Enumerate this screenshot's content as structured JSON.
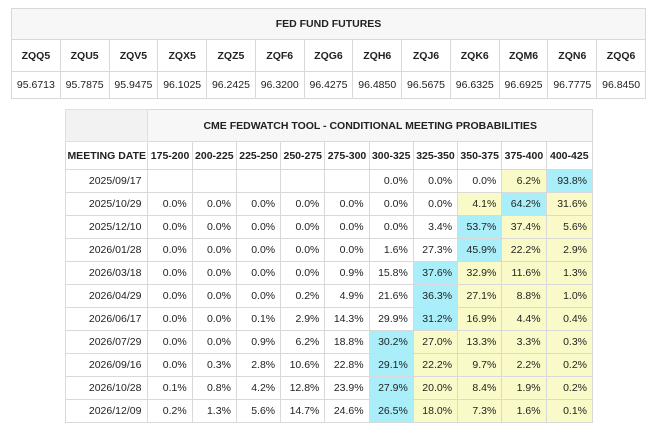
{
  "futures": {
    "title": "FED FUND FUTURES",
    "columns": [
      "ZQQ5",
      "ZQU5",
      "ZQV5",
      "ZQX5",
      "ZQZ5",
      "ZQF6",
      "ZQG6",
      "ZQH6",
      "ZQJ6",
      "ZQK6",
      "ZQM6",
      "ZQN6",
      "ZQQ6"
    ],
    "values": [
      "95.6713",
      "95.7875",
      "95.9475",
      "96.1025",
      "96.2425",
      "96.3200",
      "96.4275",
      "96.4850",
      "96.5675",
      "96.6325",
      "96.6925",
      "96.7775",
      "96.8450"
    ]
  },
  "fedwatch": {
    "title": "CME FEDWATCH TOOL - CONDITIONAL MEETING PROBABILITIES",
    "date_header": "MEETING DATE",
    "ranges": [
      "175-200",
      "200-225",
      "225-250",
      "250-275",
      "275-300",
      "300-325",
      "325-350",
      "350-375",
      "375-400",
      "400-425"
    ],
    "colors": {
      "yellow": "#fafac8",
      "cyan": "#a9eef9"
    },
    "rows": [
      {
        "date": "2025/09/17",
        "values": [
          "",
          "",
          "",
          "",
          "",
          "0.0%",
          "0.0%",
          "0.0%",
          "6.2%",
          "93.8%"
        ],
        "hl": [
          "",
          "",
          "",
          "",
          "",
          "",
          "",
          "",
          "y",
          "c"
        ]
      },
      {
        "date": "2025/10/29",
        "values": [
          "0.0%",
          "0.0%",
          "0.0%",
          "0.0%",
          "0.0%",
          "0.0%",
          "0.0%",
          "4.1%",
          "64.2%",
          "31.6%"
        ],
        "hl": [
          "",
          "",
          "",
          "",
          "",
          "",
          "",
          "y",
          "c",
          "y"
        ]
      },
      {
        "date": "2025/12/10",
        "values": [
          "0.0%",
          "0.0%",
          "0.0%",
          "0.0%",
          "0.0%",
          "0.0%",
          "3.4%",
          "53.7%",
          "37.4%",
          "5.6%"
        ],
        "hl": [
          "",
          "",
          "",
          "",
          "",
          "",
          "",
          "c",
          "y",
          "y"
        ]
      },
      {
        "date": "2026/01/28",
        "values": [
          "0.0%",
          "0.0%",
          "0.0%",
          "0.0%",
          "0.0%",
          "1.6%",
          "27.3%",
          "45.9%",
          "22.2%",
          "2.9%"
        ],
        "hl": [
          "",
          "",
          "",
          "",
          "",
          "",
          "",
          "c",
          "y",
          "y"
        ]
      },
      {
        "date": "2026/03/18",
        "values": [
          "0.0%",
          "0.0%",
          "0.0%",
          "0.0%",
          "0.9%",
          "15.8%",
          "37.6%",
          "32.9%",
          "11.6%",
          "1.3%"
        ],
        "hl": [
          "",
          "",
          "",
          "",
          "",
          "",
          "c",
          "y",
          "y",
          "y"
        ]
      },
      {
        "date": "2026/04/29",
        "values": [
          "0.0%",
          "0.0%",
          "0.0%",
          "0.2%",
          "4.9%",
          "21.6%",
          "36.3%",
          "27.1%",
          "8.8%",
          "1.0%"
        ],
        "hl": [
          "",
          "",
          "",
          "",
          "",
          "",
          "c",
          "y",
          "y",
          "y"
        ]
      },
      {
        "date": "2026/06/17",
        "values": [
          "0.0%",
          "0.0%",
          "0.1%",
          "2.9%",
          "14.3%",
          "29.9%",
          "31.2%",
          "16.9%",
          "4.4%",
          "0.4%"
        ],
        "hl": [
          "",
          "",
          "",
          "",
          "",
          "",
          "c",
          "y",
          "y",
          "y"
        ]
      },
      {
        "date": "2026/07/29",
        "values": [
          "0.0%",
          "0.0%",
          "0.9%",
          "6.2%",
          "18.8%",
          "30.2%",
          "27.0%",
          "13.3%",
          "3.3%",
          "0.3%"
        ],
        "hl": [
          "",
          "",
          "",
          "",
          "",
          "c",
          "y",
          "y",
          "y",
          "y"
        ]
      },
      {
        "date": "2026/09/16",
        "values": [
          "0.0%",
          "0.3%",
          "2.8%",
          "10.6%",
          "22.8%",
          "29.1%",
          "22.2%",
          "9.7%",
          "2.2%",
          "0.2%"
        ],
        "hl": [
          "",
          "",
          "",
          "",
          "",
          "c",
          "y",
          "y",
          "y",
          "y"
        ]
      },
      {
        "date": "2026/10/28",
        "values": [
          "0.1%",
          "0.8%",
          "4.2%",
          "12.8%",
          "23.9%",
          "27.9%",
          "20.0%",
          "8.4%",
          "1.9%",
          "0.2%"
        ],
        "hl": [
          "",
          "",
          "",
          "",
          "",
          "c",
          "y",
          "y",
          "y",
          "y"
        ]
      },
      {
        "date": "2026/12/09",
        "values": [
          "0.2%",
          "1.3%",
          "5.6%",
          "14.7%",
          "24.6%",
          "26.5%",
          "18.0%",
          "7.3%",
          "1.6%",
          "0.1%"
        ],
        "hl": [
          "",
          "",
          "",
          "",
          "",
          "c",
          "y",
          "y",
          "y",
          "y"
        ]
      }
    ]
  }
}
